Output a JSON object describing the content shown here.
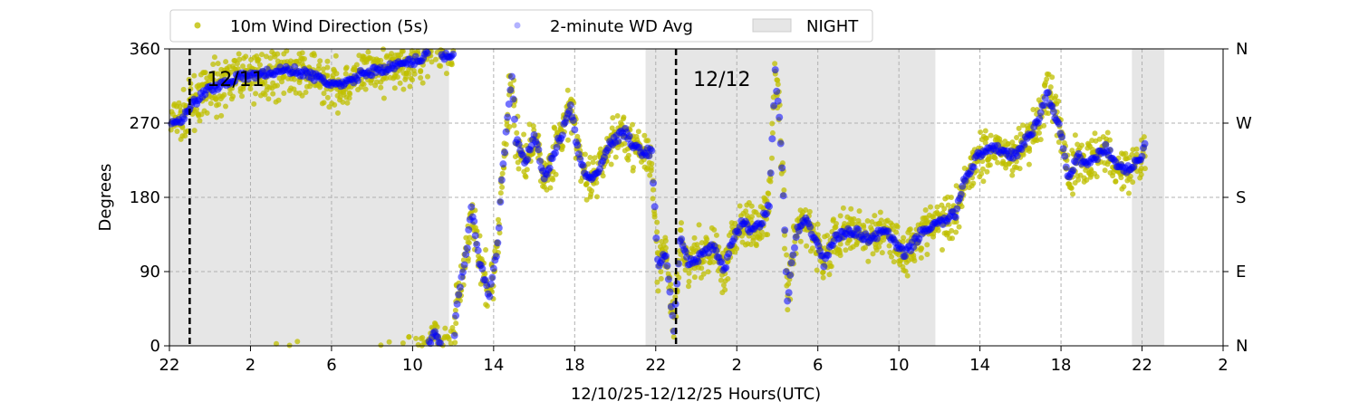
{
  "chart_data": {
    "type": "scatter",
    "title": "",
    "xlabel": "12/10/25-12/12/25  Hours(UTC)",
    "ylabel": "Degrees",
    "x_units": "hours since 12/10 22:00 UTC",
    "xlim": [
      0,
      52
    ],
    "ylim": [
      0,
      360
    ],
    "x_ticks": [
      0,
      4,
      8,
      12,
      16,
      20,
      24,
      28,
      32,
      36,
      40,
      44,
      48,
      52
    ],
    "x_tick_labels": [
      "22",
      "2",
      "6",
      "10",
      "14",
      "18",
      "22",
      "2",
      "6",
      "10",
      "14",
      "18",
      "22",
      "2"
    ],
    "y_ticks": [
      0,
      90,
      180,
      270,
      360
    ],
    "y_tick_labels": [
      "0",
      "90",
      "180",
      "270",
      "360"
    ],
    "y2_tick_labels": [
      "N",
      "E",
      "S",
      "W",
      "N"
    ],
    "grid": true,
    "legend": {
      "placement": "top",
      "entries": [
        {
          "label": "10m Wind Direction (5s)",
          "color": "#bfbf00"
        },
        {
          "label": "2-minute WD Avg",
          "color": "#0000ff"
        },
        {
          "label": "NIGHT",
          "color": "#e6e6e6"
        }
      ]
    },
    "night_periods": [
      [
        0,
        13.8
      ],
      [
        23.5,
        37.8
      ],
      [
        47.5,
        49.1
      ]
    ],
    "day_markers": [
      {
        "x": 1.0,
        "label": "12/11"
      },
      {
        "x": 25.0,
        "label": "12/12"
      }
    ],
    "scatter_spread_deg": 22,
    "series": [
      {
        "name": "2-minute WD Avg",
        "x": [
          0.1,
          0.6,
          1.0,
          1.9,
          3.3,
          4.6,
          5.9,
          6.8,
          7.7,
          8.6,
          9.5,
          10.4,
          11.3,
          12.0,
          12.6,
          13.1,
          13.5,
          14.0,
          14.2,
          14.7,
          14.9,
          15.3,
          15.8,
          16.2,
          16.4,
          16.9,
          17.1,
          17.6,
          18.0,
          18.5,
          18.9,
          19.4,
          19.8,
          20.2,
          20.7,
          21.1,
          21.6,
          22.0,
          22.5,
          22.9,
          23.4,
          23.8,
          24.1,
          24.5,
          24.9,
          25.2,
          25.6,
          26.3,
          26.9,
          27.4,
          27.8,
          28.3,
          28.7,
          29.2,
          29.6,
          29.9,
          30.1,
          30.3,
          30.5,
          30.7,
          31.0,
          31.4,
          31.9,
          32.3,
          32.8,
          33.7,
          34.5,
          35.4,
          35.9,
          36.3,
          37.2,
          38.1,
          38.8,
          39.2,
          39.9,
          40.8,
          41.7,
          42.6,
          43.0,
          43.3,
          43.5,
          43.9,
          44.4,
          44.8,
          45.3,
          46.2,
          47.1,
          48.0,
          48.2
        ],
        "y": [
          270,
          275,
          290,
          310,
          325,
          330,
          335,
          330,
          320,
          315,
          330,
          335,
          340,
          345,
          350,
          20,
          350,
          355,
          50,
          120,
          170,
          100,
          60,
          120,
          200,
          330,
          250,
          220,
          260,
          200,
          230,
          260,
          290,
          230,
          200,
          210,
          240,
          250,
          260,
          240,
          235,
          235,
          100,
          110,
          20,
          130,
          100,
          110,
          120,
          90,
          130,
          150,
          140,
          150,
          170,
          330,
          280,
          180,
          50,
          100,
          140,
          150,
          130,
          100,
          130,
          140,
          130,
          140,
          120,
          110,
          140,
          150,
          160,
          200,
          230,
          240,
          230,
          260,
          280,
          310,
          290,
          270,
          200,
          230,
          220,
          240,
          210,
          230,
          250
        ]
      }
    ]
  }
}
